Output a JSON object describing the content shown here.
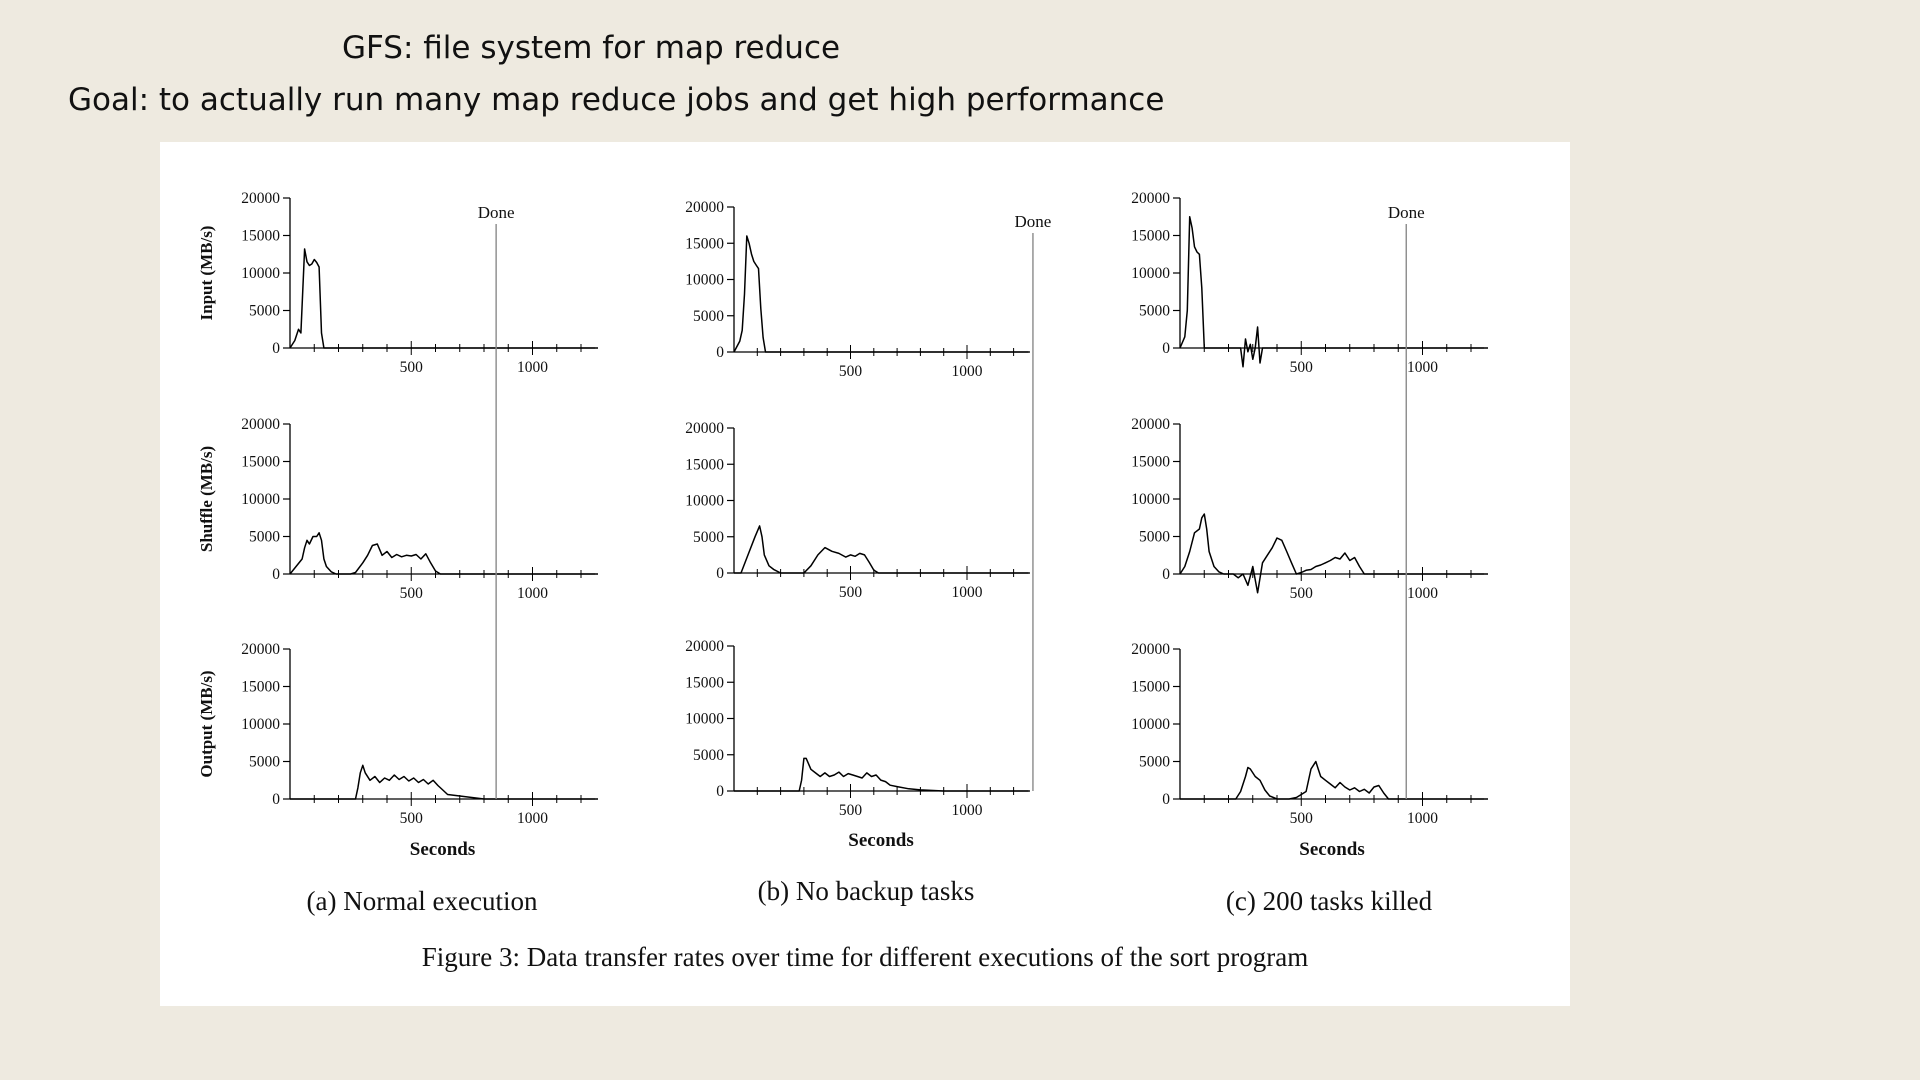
{
  "slide": {
    "title": "GFS: file system for map reduce",
    "goal": "Goal: to actually run many map reduce jobs and get high performance"
  },
  "figure": {
    "caption": "Figure 3: Data transfer rates over time for different executions of the sort program"
  },
  "chart_data": [
    {
      "type": "line",
      "subcaption": "(a) Normal execution",
      "xlabel": "Seconds",
      "xlim": [
        0,
        1270
      ],
      "xticks": [
        500,
        1000
      ],
      "done_label": "Done",
      "done_x": 850,
      "rows": [
        {
          "ylabel": "Input (MB/s)",
          "ylim": [
            0,
            20000
          ],
          "yticks": [
            0,
            5000,
            10000,
            15000,
            20000
          ],
          "x": [
            0,
            20,
            35,
            45,
            60,
            70,
            80,
            90,
            100,
            110,
            120,
            130,
            140,
            150,
            1270
          ],
          "y": [
            0,
            1000,
            2500,
            2000,
            13200,
            11500,
            11000,
            11200,
            11800,
            11400,
            10800,
            2000,
            0,
            0,
            0
          ]
        },
        {
          "ylabel": "Shuffle (MB/s)",
          "ylim": [
            0,
            20000
          ],
          "yticks": [
            0,
            5000,
            10000,
            15000,
            20000
          ],
          "x": [
            0,
            50,
            60,
            70,
            80,
            95,
            110,
            120,
            130,
            140,
            150,
            170,
            190,
            210,
            230,
            250,
            270,
            300,
            320,
            340,
            360,
            380,
            400,
            420,
            440,
            460,
            480,
            500,
            520,
            540,
            560,
            580,
            600,
            620,
            1270
          ],
          "y": [
            0,
            2000,
            3500,
            4500,
            4000,
            5000,
            5000,
            5500,
            4500,
            2000,
            1000,
            300,
            0,
            0,
            0,
            0,
            200,
            1500,
            2500,
            3800,
            4000,
            2500,
            3000,
            2200,
            2600,
            2300,
            2500,
            2400,
            2600,
            2000,
            2700,
            1500,
            400,
            0,
            0
          ]
        },
        {
          "ylabel": "Output (MB/s)",
          "ylim": [
            0,
            20000
          ],
          "yticks": [
            0,
            5000,
            10000,
            15000,
            20000
          ],
          "x": [
            0,
            270,
            280,
            290,
            300,
            310,
            330,
            350,
            370,
            390,
            410,
            430,
            450,
            470,
            490,
            510,
            530,
            550,
            570,
            590,
            610,
            630,
            650,
            700,
            750,
            800,
            1270
          ],
          "y": [
            0,
            0,
            1500,
            3500,
            4500,
            3500,
            2500,
            3000,
            2200,
            2800,
            2500,
            3200,
            2600,
            3000,
            2400,
            2800,
            2200,
            2600,
            2000,
            2500,
            1800,
            1200,
            600,
            400,
            200,
            0,
            0
          ]
        }
      ]
    },
    {
      "type": "line",
      "subcaption": "(b) No backup tasks",
      "xlabel": "Seconds",
      "xlim": [
        0,
        1270
      ],
      "xticks": [
        500,
        1000
      ],
      "done_label": "Done",
      "done_x": 1283,
      "rows": [
        {
          "ylabel": "",
          "ylim": [
            0,
            20000
          ],
          "yticks": [
            0,
            5000,
            10000,
            15000,
            20000
          ],
          "x": [
            0,
            25,
            35,
            45,
            55,
            65,
            75,
            85,
            95,
            105,
            115,
            125,
            135,
            1270
          ],
          "y": [
            0,
            1500,
            3000,
            8000,
            16000,
            15000,
            13500,
            12500,
            12000,
            11500,
            6000,
            2000,
            0,
            0
          ]
        },
        {
          "ylabel": "",
          "ylim": [
            0,
            20000
          ],
          "yticks": [
            0,
            5000,
            10000,
            15000,
            20000
          ],
          "x": [
            0,
            30,
            60,
            90,
            110,
            120,
            130,
            150,
            170,
            200,
            250,
            300,
            330,
            360,
            390,
            420,
            450,
            480,
            500,
            520,
            540,
            560,
            580,
            600,
            620,
            1270
          ],
          "y": [
            0,
            0,
            2500,
            5000,
            6500,
            5000,
            2500,
            1000,
            500,
            0,
            0,
            0,
            1000,
            2500,
            3500,
            3000,
            2700,
            2200,
            2500,
            2300,
            2700,
            2500,
            1500,
            400,
            0,
            0
          ]
        },
        {
          "ylabel": "",
          "ylim": [
            0,
            20000
          ],
          "yticks": [
            0,
            5000,
            10000,
            15000,
            20000
          ],
          "x": [
            0,
            280,
            290,
            300,
            310,
            330,
            350,
            370,
            390,
            410,
            430,
            450,
            470,
            490,
            510,
            530,
            550,
            570,
            590,
            610,
            630,
            650,
            670,
            700,
            750,
            800,
            900,
            1270
          ],
          "y": [
            0,
            0,
            1500,
            4500,
            4500,
            3000,
            2500,
            2000,
            2500,
            2000,
            2200,
            2600,
            2000,
            2400,
            2200,
            2000,
            1800,
            2500,
            2000,
            2200,
            1500,
            1300,
            800,
            600,
            300,
            150,
            0,
            0
          ]
        }
      ]
    },
    {
      "type": "line",
      "subcaption": "(c) 200 tasks killed",
      "xlabel": "Seconds",
      "xlim": [
        0,
        1270
      ],
      "xticks": [
        500,
        1000
      ],
      "done_label": "Done",
      "done_x": 933,
      "rows": [
        {
          "ylabel": "",
          "ylim": [
            0,
            20000
          ],
          "yticks": [
            0,
            5000,
            10000,
            15000,
            20000
          ],
          "x": [
            0,
            20,
            30,
            40,
            50,
            60,
            70,
            80,
            90,
            100,
            110,
            120,
            130,
            250,
            260,
            270,
            280,
            290,
            300,
            310,
            320,
            330,
            340,
            350,
            360,
            1270
          ],
          "y": [
            0,
            1500,
            5000,
            17500,
            16000,
            13500,
            12800,
            12500,
            8000,
            0,
            0,
            0,
            0,
            0,
            -2500,
            1200,
            -500,
            500,
            -1500,
            0,
            2800,
            -2000,
            0,
            0,
            0,
            0
          ]
        },
        {
          "ylabel": "",
          "ylim": [
            0,
            20000
          ],
          "yticks": [
            0,
            5000,
            10000,
            15000,
            20000
          ],
          "x": [
            0,
            20,
            40,
            60,
            80,
            90,
            100,
            110,
            120,
            140,
            160,
            180,
            200,
            220,
            240,
            260,
            280,
            300,
            320,
            340,
            360,
            380,
            400,
            420,
            440,
            460,
            480,
            500,
            520,
            540,
            560,
            580,
            600,
            620,
            640,
            660,
            680,
            700,
            720,
            740,
            760,
            880,
            1270
          ],
          "y": [
            0,
            1000,
            3000,
            5500,
            6000,
            7500,
            8000,
            6000,
            3000,
            1000,
            300,
            0,
            0,
            0,
            -500,
            0,
            -1500,
            1000,
            -2500,
            1500,
            2500,
            3500,
            4800,
            4500,
            3000,
            1500,
            0,
            200,
            500,
            600,
            1000,
            1200,
            1500,
            1800,
            2200,
            2000,
            2800,
            1800,
            2200,
            1000,
            0,
            0,
            0
          ]
        },
        {
          "ylabel": "",
          "ylim": [
            0,
            20000
          ],
          "yticks": [
            0,
            5000,
            10000,
            15000,
            20000
          ],
          "x": [
            0,
            230,
            250,
            270,
            280,
            290,
            310,
            330,
            350,
            370,
            400,
            450,
            480,
            500,
            520,
            540,
            550,
            560,
            570,
            580,
            600,
            620,
            640,
            660,
            680,
            700,
            720,
            740,
            760,
            780,
            800,
            820,
            840,
            860,
            1270
          ],
          "y": [
            0,
            0,
            1000,
            3000,
            4200,
            4000,
            3000,
            2500,
            1200,
            400,
            0,
            0,
            200,
            600,
            1000,
            4000,
            4500,
            5000,
            4000,
            3000,
            2500,
            2000,
            1500,
            2200,
            1600,
            1200,
            1500,
            1000,
            1300,
            800,
            1600,
            1800,
            800,
            0,
            0
          ]
        }
      ]
    }
  ]
}
